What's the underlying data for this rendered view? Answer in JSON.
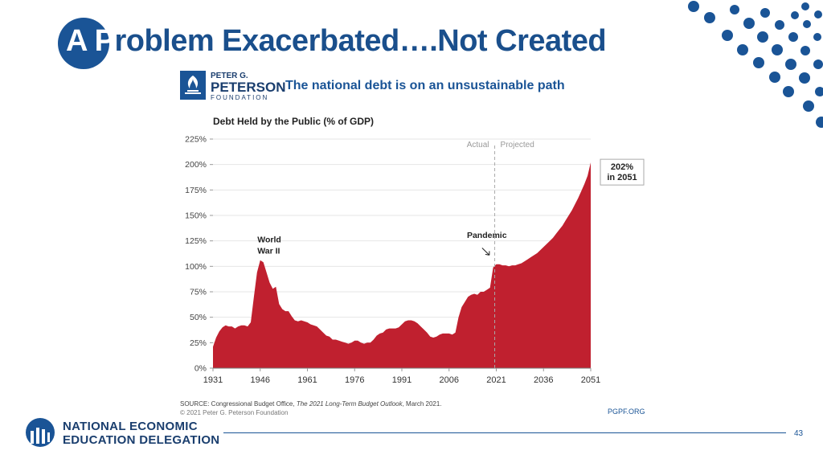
{
  "slide": {
    "title_lead": "A P",
    "title_rest": "roblem Exacerbated….Not Created",
    "page_number": "43",
    "org_line1": "NATIONAL ECONOMIC",
    "org_line2": "EDUCATION DELEGATION"
  },
  "pgpf": {
    "name_line1": "PETER G.",
    "name_line2": "PETERSON",
    "name_line3": "FOUNDATION",
    "tagline": "The national debt is on an unsustainable path",
    "source_line1_pre": "SOURCE: Congressional Budget Office, ",
    "source_line1_italic": "The 2021 Long-Term Budget Outlook",
    "source_line1_post": ", March 2021.",
    "source_line2": "© 2021 Peter G. Peterson Foundation",
    "url": "PGPF.ORG"
  },
  "colors": {
    "brand_blue": "#1a5496",
    "area_red": "#c0202f"
  },
  "chart_data": {
    "type": "area",
    "title": "Debt Held by the Public (% of GDP)",
    "xlim": [
      1931,
      2051
    ],
    "ylim": [
      0,
      225
    ],
    "x_ticks": [
      "1931",
      "1946",
      "1961",
      "1976",
      "1991",
      "2006",
      "2021",
      "2036",
      "2051"
    ],
    "y_ticks": [
      "0%",
      "25%",
      "50%",
      "75%",
      "100%",
      "125%",
      "150%",
      "175%",
      "200%",
      "225%"
    ],
    "divider_x": 2020.5,
    "actual_label": "Actual",
    "projected_label": "Projected",
    "annotations": {
      "wwii": "World\nWar II",
      "pandemic": "Pandemic",
      "end_line1": "202%",
      "end_line2": "in 2051"
    },
    "x": [
      1931,
      1932,
      1933,
      1934,
      1935,
      1936,
      1937,
      1938,
      1939,
      1940,
      1941,
      1942,
      1943,
      1944,
      1945,
      1946,
      1947,
      1948,
      1949,
      1950,
      1951,
      1952,
      1953,
      1954,
      1955,
      1956,
      1957,
      1958,
      1959,
      1960,
      1961,
      1962,
      1963,
      1964,
      1965,
      1966,
      1967,
      1968,
      1969,
      1970,
      1971,
      1972,
      1973,
      1974,
      1975,
      1976,
      1977,
      1978,
      1979,
      1980,
      1981,
      1982,
      1983,
      1984,
      1985,
      1986,
      1987,
      1988,
      1989,
      1990,
      1991,
      1992,
      1993,
      1994,
      1995,
      1996,
      1997,
      1998,
      1999,
      2000,
      2001,
      2002,
      2003,
      2004,
      2005,
      2006,
      2007,
      2008,
      2009,
      2010,
      2011,
      2012,
      2013,
      2014,
      2015,
      2016,
      2017,
      2018,
      2019,
      2020,
      2021,
      2022,
      2023,
      2024,
      2025,
      2026,
      2027,
      2028,
      2029,
      2030,
      2031,
      2032,
      2033,
      2034,
      2035,
      2036,
      2037,
      2038,
      2039,
      2040,
      2041,
      2042,
      2043,
      2044,
      2045,
      2046,
      2047,
      2048,
      2049,
      2050,
      2051
    ],
    "values": [
      21,
      30,
      36,
      40,
      42,
      41,
      41,
      39,
      41,
      42,
      42,
      41,
      45,
      70,
      94,
      106,
      104,
      94,
      84,
      78,
      80,
      63,
      58,
      56,
      56,
      51,
      47,
      46,
      47,
      46,
      45,
      43,
      42,
      41,
      38,
      35,
      32,
      31,
      28,
      28,
      27,
      26,
      25,
      24,
      25,
      27,
      27,
      25,
      24,
      25,
      25,
      28,
      32,
      34,
      35,
      38,
      39,
      39,
      39,
      40,
      43,
      46,
      47,
      47,
      46,
      44,
      41,
      38,
      35,
      31,
      30,
      31,
      33,
      34,
      34,
      34,
      33,
      35,
      50,
      60,
      65,
      70,
      72,
      73,
      72,
      75,
      75,
      77,
      79,
      99,
      102,
      102,
      101,
      101,
      100,
      101,
      101,
      102,
      103,
      105,
      107,
      109,
      111,
      113,
      116,
      119,
      122,
      125,
      128,
      132,
      136,
      140,
      145,
      150,
      155,
      161,
      167,
      174,
      181,
      189,
      202
    ]
  }
}
